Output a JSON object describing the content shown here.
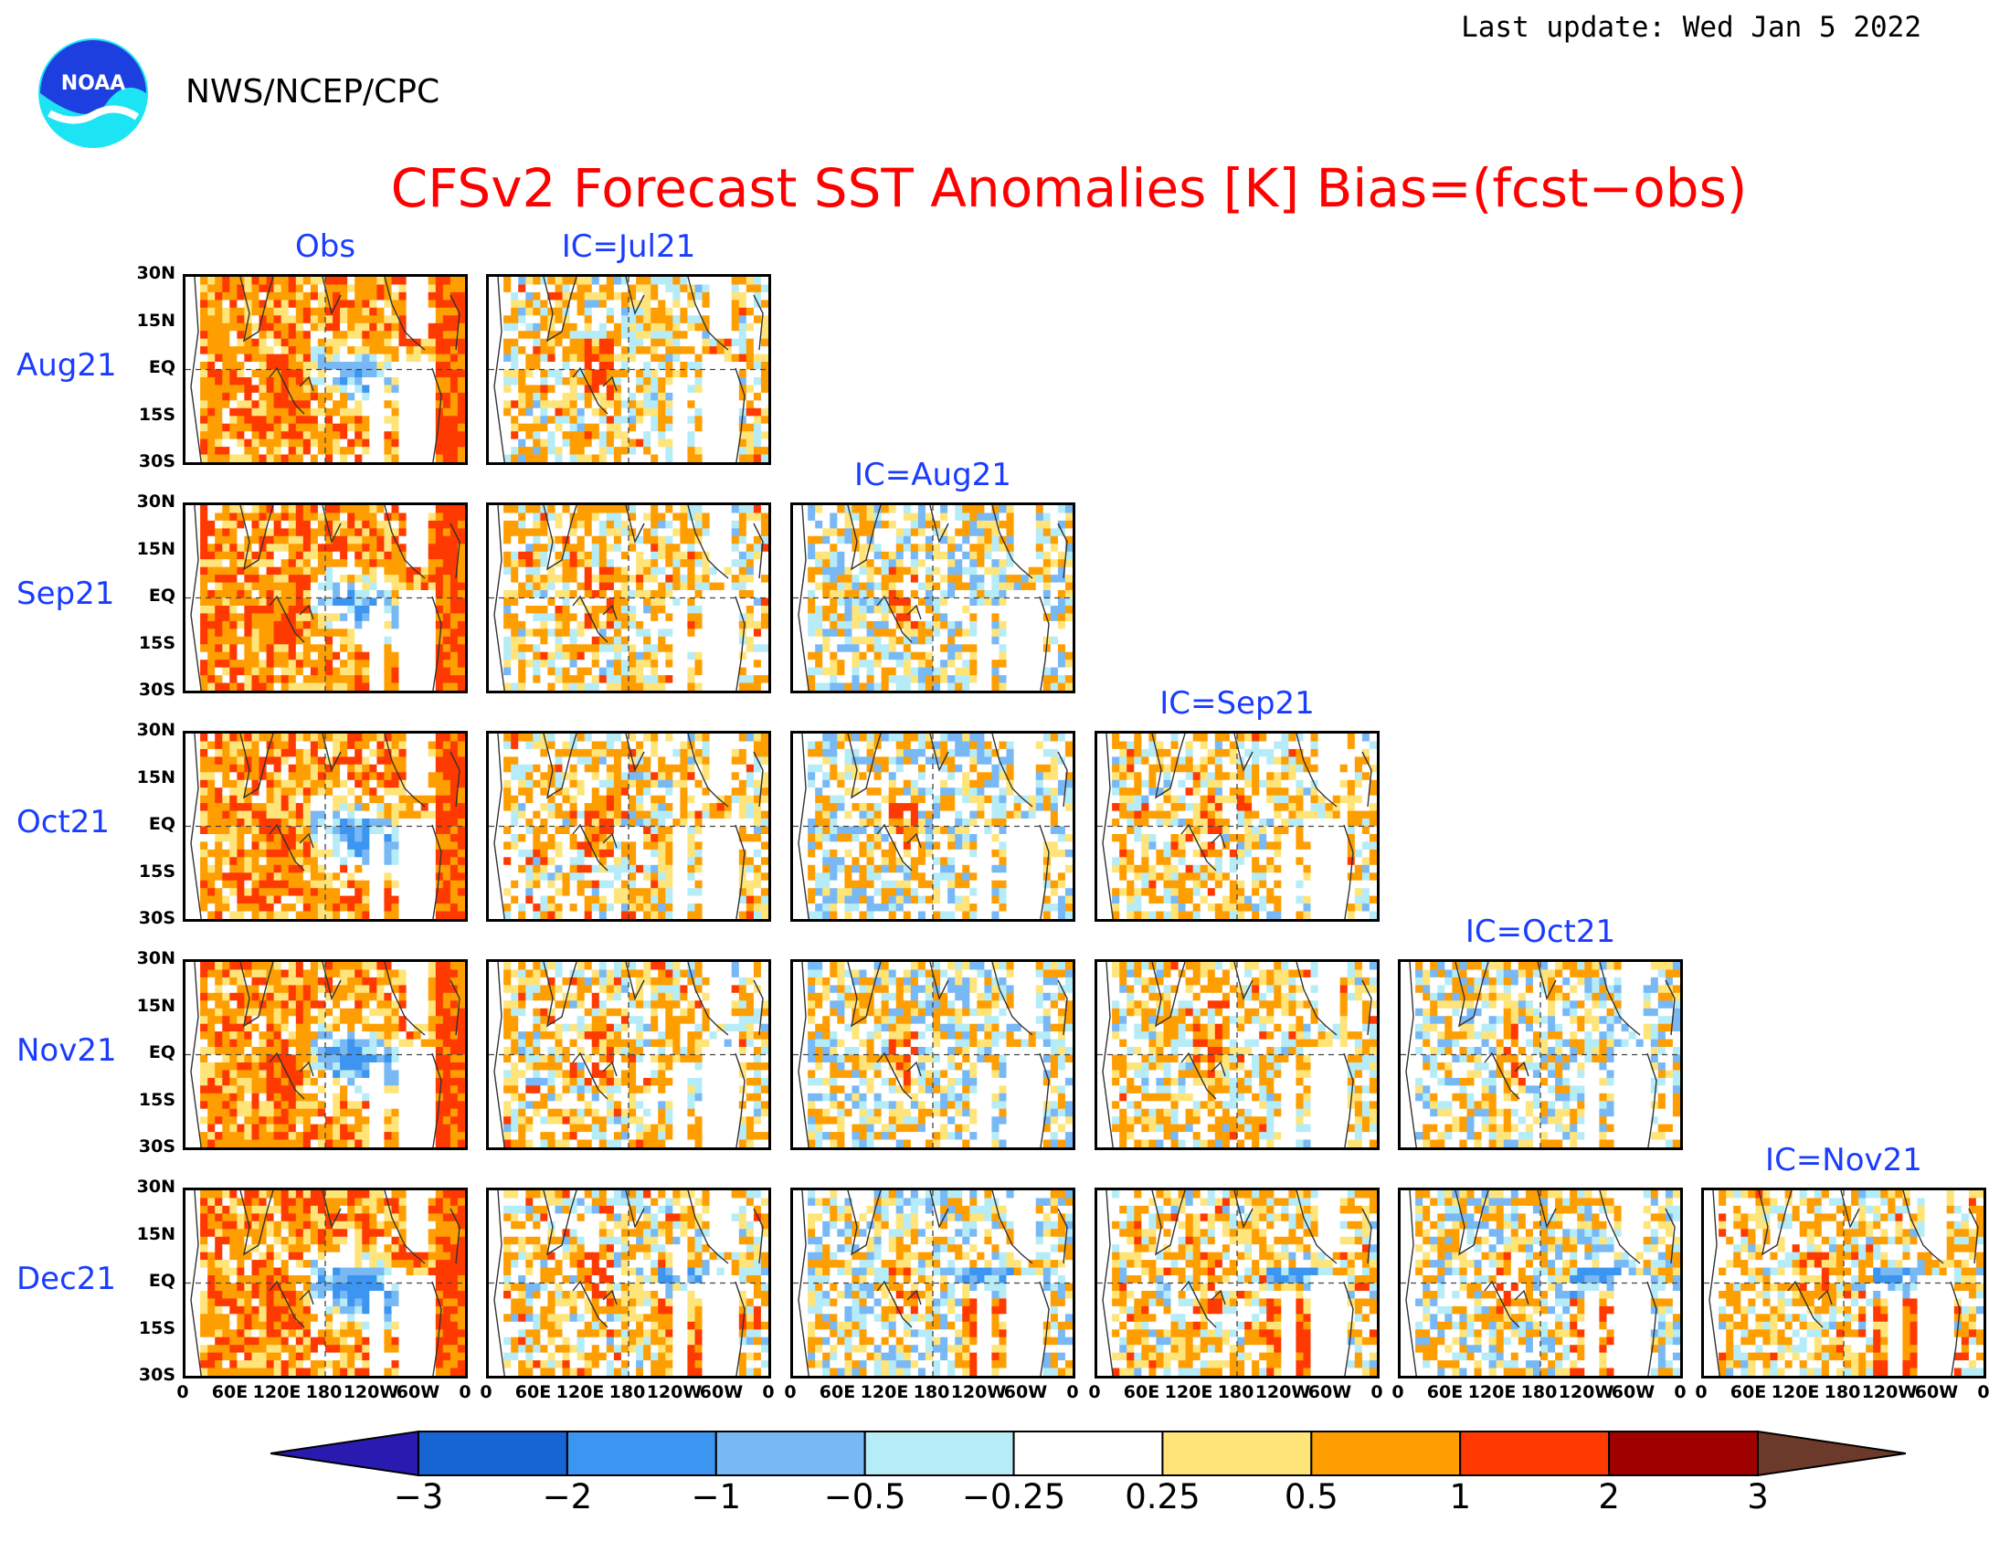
{
  "header": {
    "last_update": "Last update: Wed Jan 5 2022",
    "org": "NWS/NCEP/CPC",
    "logo_text": "NOAA",
    "title": "CFSv2 Forecast SST Anomalies [K] Bias=(fcst−obs)"
  },
  "columns": [
    "Obs",
    "IC=Jul21",
    "IC=Aug21",
    "IC=Sep21",
    "IC=Oct21",
    "IC=Nov21"
  ],
  "rows": [
    "Aug21",
    "Sep21",
    "Oct21",
    "Nov21",
    "Dec21"
  ],
  "lat_ticks": [
    "30N",
    "15N",
    "EQ",
    "15S",
    "30S"
  ],
  "lon_ticks": [
    "0",
    "60E",
    "120E",
    "180",
    "120W",
    "60W",
    "0"
  ],
  "colorbar": {
    "labels": [
      "−3",
      "−2",
      "−1",
      "−0.5",
      "−0.25",
      "0.25",
      "0.5",
      "1",
      "2",
      "3"
    ],
    "colors": [
      "#2a1bb0",
      "#1764d4",
      "#3c95f0",
      "#78b9f5",
      "#b6ecf7",
      "#ffffff",
      "#ffe47a",
      "#ff9e00",
      "#ff3a00",
      "#a00000",
      "#6b3a2a"
    ]
  }
}
